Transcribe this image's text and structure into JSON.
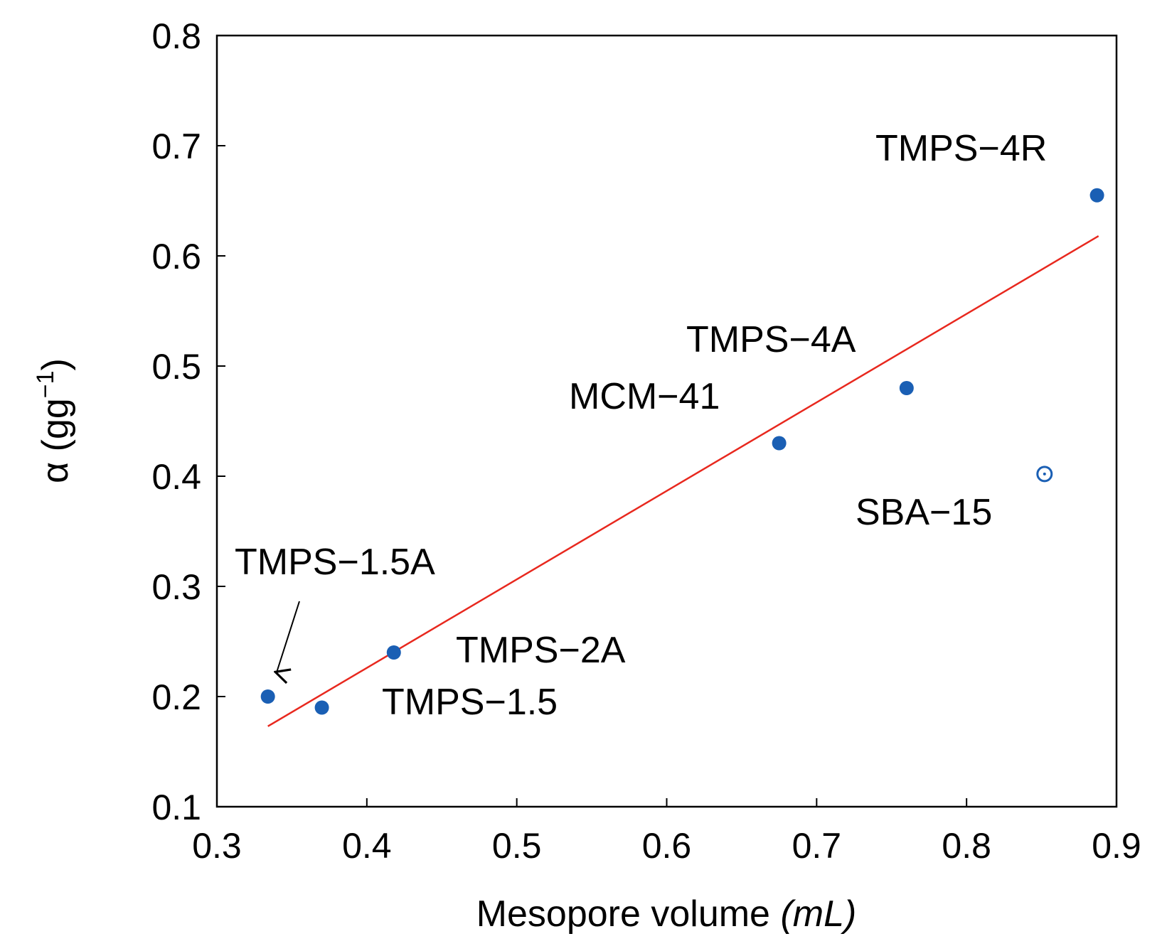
{
  "chart_data": {
    "type": "scatter",
    "title": "",
    "xlabel": "Mesopore volume",
    "xlabel_unit": "(mL)",
    "ylabel_symbol": "α",
    "ylabel_unit_prefix": "(gg",
    "ylabel_unit_exponent": "−1",
    "ylabel_unit_suffix": ")",
    "xlim": [
      0.3,
      0.9
    ],
    "ylim": [
      0.1,
      0.8
    ],
    "xticks": [
      0.3,
      0.4,
      0.5,
      0.6,
      0.7,
      0.8,
      0.9
    ],
    "yticks": [
      0.1,
      0.2,
      0.3,
      0.4,
      0.5,
      0.6,
      0.7,
      0.8
    ],
    "xtick_labels": [
      "0.3",
      "0.4",
      "0.5",
      "0.6",
      "0.7",
      "0.8",
      "0.9"
    ],
    "ytick_labels": [
      "0.1",
      "0.2",
      "0.3",
      "0.4",
      "0.5",
      "0.6",
      "0.7",
      "0.8"
    ],
    "grid": false,
    "marker_color": "#1a5fb4",
    "fit_color": "#e8281e",
    "points": [
      {
        "label": "TMPS−1.5A",
        "x": 0.334,
        "y": 0.2,
        "marker": "filled"
      },
      {
        "label": "TMPS−1.5",
        "x": 0.37,
        "y": 0.19,
        "marker": "filled"
      },
      {
        "label": "TMPS−2A",
        "x": 0.418,
        "y": 0.24,
        "marker": "filled"
      },
      {
        "label": "MCM−41",
        "x": 0.675,
        "y": 0.43,
        "marker": "filled"
      },
      {
        "label": "TMPS−4A",
        "x": 0.76,
        "y": 0.48,
        "marker": "filled"
      },
      {
        "label": "SBA−15",
        "x": 0.852,
        "y": 0.402,
        "marker": "open-dot"
      },
      {
        "label": "TMPS−4R",
        "x": 0.887,
        "y": 0.655,
        "marker": "filled"
      }
    ],
    "fit_line": {
      "x": [
        0.334,
        0.888
      ],
      "y": [
        0.173,
        0.618
      ]
    },
    "arrow_annotation": {
      "label": "TMPS−1.5A",
      "points_to": "TMPS−1.5A"
    }
  }
}
